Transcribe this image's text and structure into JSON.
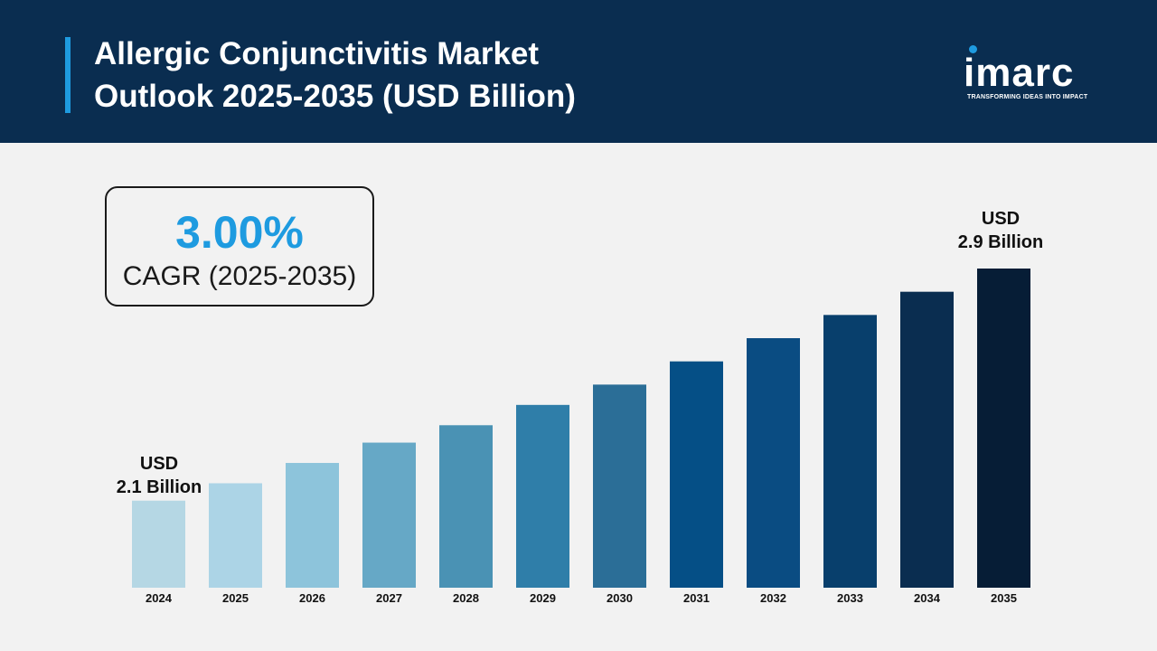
{
  "header": {
    "title_line1": "Allergic Conjunctivitis Market",
    "title_line2": "Outlook 2025-2035 (USD Billion)",
    "logo_text": "imarc",
    "logo_tagline": "TRANSFORMING IDEAS INTO IMPACT"
  },
  "cagr": {
    "value": "3.00%",
    "label": "CAGR (2025-2035)"
  },
  "annotations": {
    "start_line1": "USD",
    "start_line2": "2.1 Billion",
    "end_line1": "USD",
    "end_line2": "2.9 Billion"
  },
  "colors": {
    "header_bg": "#0a2d50",
    "accent": "#1e9be0",
    "bars": [
      "#b5d7e4",
      "#acd4e6",
      "#8dc4db",
      "#66a8c6",
      "#4a92b4",
      "#2f7ea9",
      "#2b6e97",
      "#054f86",
      "#0a4c82",
      "#083f6c",
      "#0a2d50",
      "#061d36"
    ]
  },
  "chart_data": {
    "type": "bar",
    "categories": [
      "2024",
      "2025",
      "2026",
      "2027",
      "2028",
      "2029",
      "2030",
      "2031",
      "2032",
      "2033",
      "2034",
      "2035"
    ],
    "values": [
      2.1,
      2.16,
      2.23,
      2.3,
      2.36,
      2.43,
      2.5,
      2.58,
      2.66,
      2.74,
      2.82,
      2.9
    ],
    "ylim": [
      1.8,
      2.95
    ],
    "grid": false,
    "legend": "none"
  }
}
